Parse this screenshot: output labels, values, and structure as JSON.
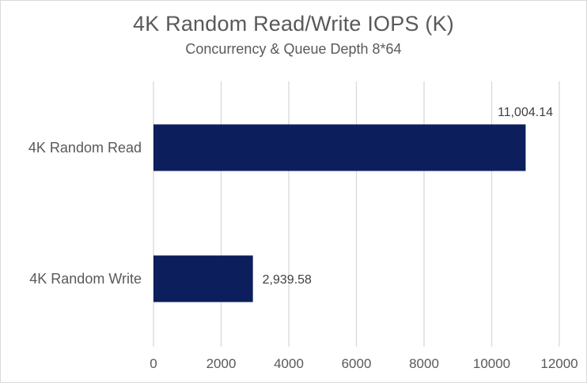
{
  "chart_data": {
    "type": "bar",
    "orientation": "horizontal",
    "title": "4K Random Read/Write IOPS (K)",
    "subtitle": "Concurrency & Queue Depth 8*64",
    "categories": [
      "4K Random Read",
      "4K Random Write"
    ],
    "values": [
      11004.14,
      2939.58
    ],
    "data_labels": [
      "11,004.14",
      "2,939.58"
    ],
    "x_ticks": [
      "0",
      "2000",
      "4000",
      "6000",
      "8000",
      "10000",
      "12000"
    ],
    "xlim": [
      0,
      12000
    ],
    "grid": true,
    "legend": "none",
    "bar_color": "#0c1f5c",
    "gridline_color": "#d9d9d9",
    "text_color": "#595959"
  }
}
